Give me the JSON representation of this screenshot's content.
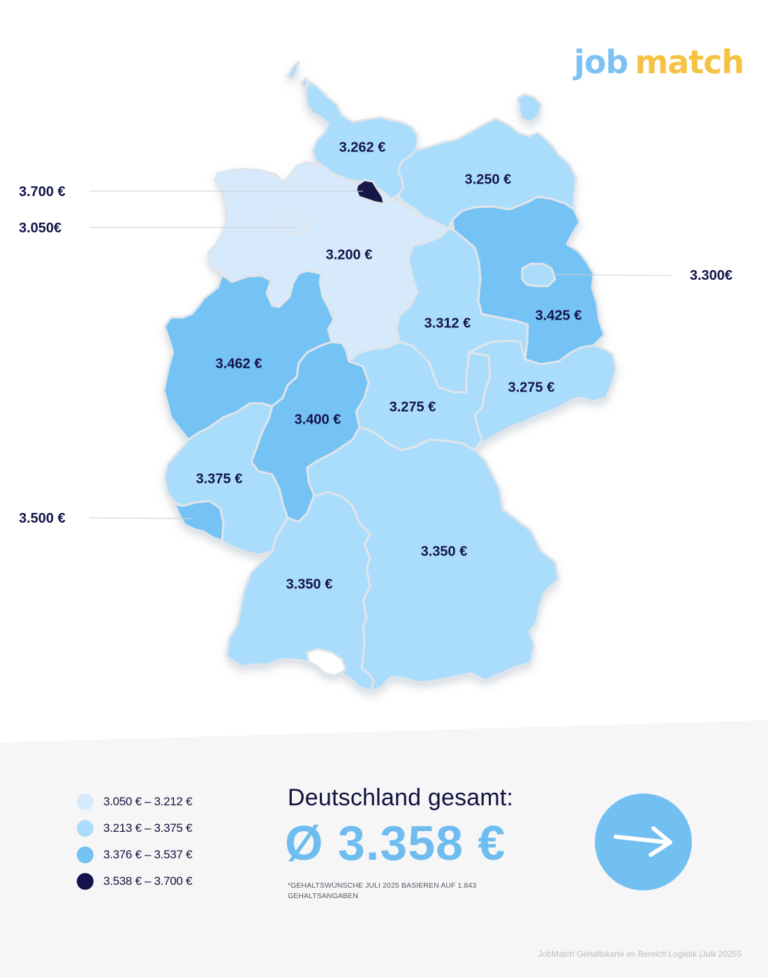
{
  "brand": {
    "logo_part1": "job",
    "logo_part2": "match"
  },
  "colors": {
    "range1": "#d6eafc",
    "range2": "#aaddfc",
    "range3": "#74c2f4",
    "range4": "#13124a",
    "text_dark": "#14144a",
    "total_value": "#6fbdf0",
    "panel_bg": "#f6f6f6",
    "logo_blue": "#7cc3f3",
    "logo_yellow": "#f6c243"
  },
  "map": {
    "states": [
      {
        "id": "sh",
        "label": "3.262 €",
        "range": 2
      },
      {
        "id": "mv",
        "label": "3.250 €",
        "range": 2
      },
      {
        "id": "hh",
        "label": "3.700 €",
        "range": 4
      },
      {
        "id": "hb",
        "label": "3.050€",
        "range": 1
      },
      {
        "id": "ni",
        "label": "3.200 €",
        "range": 1
      },
      {
        "id": "be",
        "label": "3.300€",
        "range": 2
      },
      {
        "id": "bb",
        "label": "3.425 €",
        "range": 3
      },
      {
        "id": "st",
        "label": "3.312 €",
        "range": 2
      },
      {
        "id": "nw",
        "label": "3.462 €",
        "range": 3
      },
      {
        "id": "he",
        "label": "3.400 €",
        "range": 3
      },
      {
        "id": "th",
        "label": "3.275 €",
        "range": 2
      },
      {
        "id": "sn",
        "label": "3.275 €",
        "range": 2
      },
      {
        "id": "rp",
        "label": "3.375 €",
        "range": 2
      },
      {
        "id": "sl",
        "label": "3.500 €",
        "range": 3
      },
      {
        "id": "by",
        "label": "3.350 €",
        "range": 2
      },
      {
        "id": "bw",
        "label": "3.350 €",
        "range": 2
      }
    ]
  },
  "legend": [
    {
      "label": "3.050 € – 3.212 €",
      "color": "#d6eafc"
    },
    {
      "label": "3.213 € – 3.375 €",
      "color": "#aaddfc"
    },
    {
      "label": "3.376 € – 3.537 €",
      "color": "#74c2f4"
    },
    {
      "label": "3.538 € – 3.700 €",
      "color": "#13124a"
    }
  ],
  "summary": {
    "title": "Deutschland gesamt:",
    "value": "Ø 3.358 €",
    "footnote": "*GEHALTSWÜNSCHE JULI 2025 BASIEREN AUF 1.843 GEHALTSANGABEN",
    "arrow_icon": "arrow-right-icon"
  },
  "footer": "JobMatch Gehaltskarte im Bereich Logistik  |Julii 20255"
}
